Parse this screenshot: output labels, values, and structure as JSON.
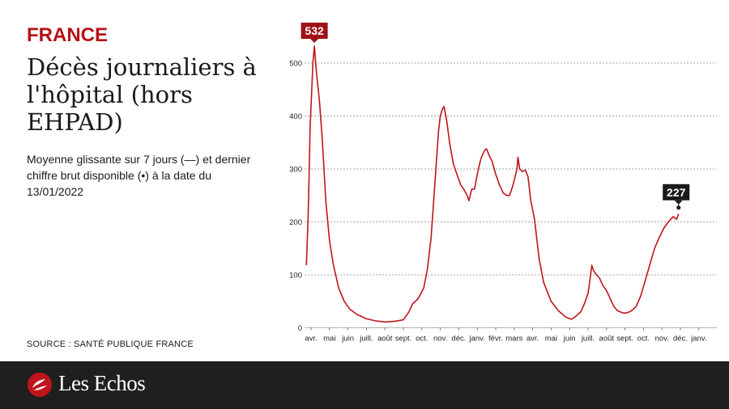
{
  "header": {
    "kicker": "FRANCE",
    "title": "Décès journaliers à l'hôpital (hors EHPAD)",
    "subtitle": "Moyenne glissante sur 7 jours (—) et dernier chiffre brut disponible (•) à la date du 13/01/2022"
  },
  "source": "SOURCE : SANTÉ PUBLIQUE FRANCE",
  "brand": {
    "name": "Les Echos"
  },
  "colors": {
    "accent": "#b70f17",
    "line": "#c0141c",
    "footer": "#1f1f1f",
    "grid": "#888888"
  },
  "chart_data": {
    "type": "line",
    "title": "Décès journaliers à l'hôpital (hors EHPAD)",
    "ylim": [
      0,
      540
    ],
    "yticks": [
      0,
      100,
      200,
      300,
      400,
      500
    ],
    "grid": true,
    "xlim": [
      0,
      22.45
    ],
    "xticks": [
      {
        "x": 0,
        "label": "avr."
      },
      {
        "x": 1,
        "label": "mai"
      },
      {
        "x": 2,
        "label": "juin"
      },
      {
        "x": 3,
        "label": "juill."
      },
      {
        "x": 4,
        "label": "août"
      },
      {
        "x": 5,
        "label": "sept."
      },
      {
        "x": 6,
        "label": "oct."
      },
      {
        "x": 7,
        "label": "nov."
      },
      {
        "x": 8,
        "label": "déc."
      },
      {
        "x": 9,
        "label": "janv."
      },
      {
        "x": 10,
        "label": "févr."
      },
      {
        "x": 11,
        "label": "mars"
      },
      {
        "x": 12,
        "label": "avr."
      },
      {
        "x": 13,
        "label": "mai"
      },
      {
        "x": 14,
        "label": "juin"
      },
      {
        "x": 15,
        "label": "juill."
      },
      {
        "x": 16,
        "label": "août"
      },
      {
        "x": 17,
        "label": "sept."
      },
      {
        "x": 18,
        "label": "oct."
      },
      {
        "x": 19,
        "label": "nov."
      },
      {
        "x": 20,
        "label": "déc."
      },
      {
        "x": 21,
        "label": "janv."
      }
    ],
    "series": [
      {
        "points": [
          [
            -0.25,
            118
          ],
          [
            -0.15,
            220
          ],
          [
            -0.05,
            380
          ],
          [
            0.1,
            500
          ],
          [
            0.18,
            532
          ],
          [
            0.3,
            480
          ],
          [
            0.45,
            430
          ],
          [
            0.6,
            360
          ],
          [
            0.8,
            240
          ],
          [
            1.0,
            165
          ],
          [
            1.2,
            120
          ],
          [
            1.5,
            75
          ],
          [
            1.8,
            50
          ],
          [
            2.1,
            35
          ],
          [
            2.5,
            25
          ],
          [
            3.0,
            17
          ],
          [
            3.5,
            13
          ],
          [
            4.0,
            11
          ],
          [
            4.5,
            12
          ],
          [
            5.0,
            15
          ],
          [
            5.3,
            30
          ],
          [
            5.5,
            45
          ],
          [
            5.8,
            55
          ],
          [
            6.1,
            75
          ],
          [
            6.3,
            110
          ],
          [
            6.5,
            170
          ],
          [
            6.7,
            270
          ],
          [
            6.9,
            370
          ],
          [
            7.0,
            400
          ],
          [
            7.1,
            412
          ],
          [
            7.2,
            418
          ],
          [
            7.35,
            390
          ],
          [
            7.5,
            350
          ],
          [
            7.7,
            310
          ],
          [
            7.9,
            290
          ],
          [
            8.1,
            270
          ],
          [
            8.3,
            260
          ],
          [
            8.45,
            250
          ],
          [
            8.55,
            240
          ],
          [
            8.7,
            262
          ],
          [
            8.85,
            262
          ],
          [
            9.0,
            290
          ],
          [
            9.2,
            320
          ],
          [
            9.4,
            335
          ],
          [
            9.5,
            338
          ],
          [
            9.65,
            325
          ],
          [
            9.8,
            315
          ],
          [
            10.0,
            290
          ],
          [
            10.2,
            270
          ],
          [
            10.4,
            255
          ],
          [
            10.6,
            250
          ],
          [
            10.75,
            250
          ],
          [
            10.9,
            265
          ],
          [
            11.05,
            285
          ],
          [
            11.15,
            300
          ],
          [
            11.2,
            322
          ],
          [
            11.3,
            300
          ],
          [
            11.45,
            295
          ],
          [
            11.6,
            298
          ],
          [
            11.75,
            285
          ],
          [
            11.9,
            240
          ],
          [
            12.1,
            205
          ],
          [
            12.35,
            130
          ],
          [
            12.6,
            85
          ],
          [
            13.0,
            50
          ],
          [
            13.4,
            32
          ],
          [
            13.8,
            20
          ],
          [
            14.1,
            16
          ],
          [
            14.35,
            22
          ],
          [
            14.6,
            30
          ],
          [
            14.8,
            45
          ],
          [
            15.0,
            65
          ],
          [
            15.1,
            90
          ],
          [
            15.2,
            118
          ],
          [
            15.3,
            108
          ],
          [
            15.45,
            100
          ],
          [
            15.6,
            95
          ],
          [
            15.8,
            80
          ],
          [
            16.0,
            70
          ],
          [
            16.2,
            55
          ],
          [
            16.4,
            40
          ],
          [
            16.6,
            32
          ],
          [
            16.9,
            28
          ],
          [
            17.1,
            28
          ],
          [
            17.35,
            32
          ],
          [
            17.6,
            40
          ],
          [
            17.85,
            60
          ],
          [
            18.1,
            90
          ],
          [
            18.35,
            120
          ],
          [
            18.6,
            150
          ],
          [
            18.85,
            170
          ],
          [
            19.1,
            188
          ],
          [
            19.35,
            200
          ],
          [
            19.6,
            210
          ],
          [
            19.8,
            205
          ],
          [
            19.9,
            215
          ]
        ]
      }
    ],
    "annotations": [
      {
        "label": "532",
        "x": 0.18,
        "y": 532,
        "style": "dark-red"
      },
      {
        "label": "227",
        "x": 19.9,
        "y": 227,
        "style": "black-dot"
      }
    ]
  }
}
